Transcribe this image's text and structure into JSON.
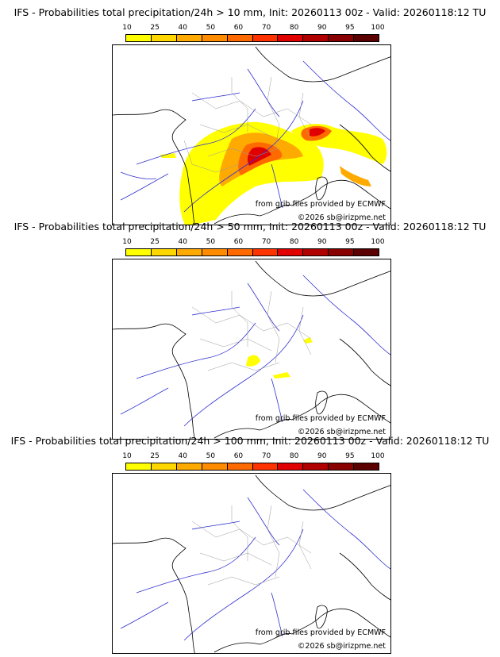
{
  "colorbar": {
    "ticks": [
      "10",
      "25",
      "40",
      "50",
      "60",
      "70",
      "80",
      "90",
      "95",
      "100"
    ],
    "colors": [
      "#ffff00",
      "#ffd700",
      "#ffaa00",
      "#ff8c00",
      "#ff6a00",
      "#ff3300",
      "#e00000",
      "#b00000",
      "#880000",
      "#5a0000"
    ]
  },
  "panels": [
    {
      "title": "IFS - Probabilities total precipitation/24h > 10 mm, Init: 20260113 00z - Valid: 20260118:12 TU",
      "credit_source": "from grib files provided by ECMWF",
      "credit_copyright": "©2026 sb@irizpme.net"
    },
    {
      "title": "IFS - Probabilities total precipitation/24h > 50 mm, Init: 20260113 00z - Valid: 20260118:12 TU",
      "credit_source": "from grib files provided by ECMWF",
      "credit_copyright": "©2026 sb@irizpme.net"
    },
    {
      "title": "IFS - Probabilities total precipitation/24h > 100 mm, Init: 20260113 00z - Valid: 20260118:12 TU",
      "credit_source": "from grib files provided by ECMWF",
      "credit_copyright": "©2026 sb@irizpme.net"
    }
  ]
}
